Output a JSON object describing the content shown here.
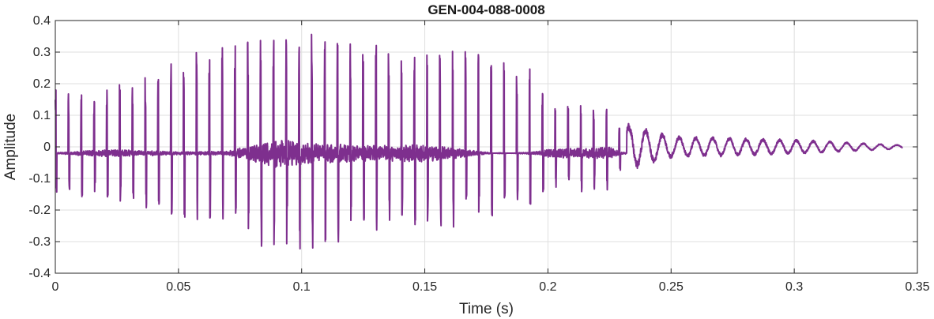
{
  "chart_data": {
    "type": "line",
    "title": "GEN-004-088-0008",
    "xlabel": "Time (s)",
    "ylabel": "Amplitude",
    "xlim": [
      0,
      0.35
    ],
    "ylim": [
      -0.4,
      0.4
    ],
    "xticks": [
      0,
      0.05,
      0.1,
      0.15,
      0.2,
      0.25,
      0.3,
      0.35
    ],
    "xtick_labels": [
      "0",
      "0.05",
      "0.1",
      "0.15",
      "0.2",
      "0.25",
      "0.3",
      "0.35"
    ],
    "yticks": [
      -0.4,
      -0.3,
      -0.2,
      -0.1,
      0,
      0.1,
      0.2,
      0.3,
      0.4
    ],
    "ytick_labels": [
      "-0.4",
      "-0.3",
      "-0.2",
      "-0.1",
      "0",
      "0.1",
      "0.2",
      "0.3",
      "0.4"
    ],
    "grid": true,
    "series": [
      {
        "color": "#7e2f8e",
        "duration": 0.344,
        "envelope": [
          [
            0.0,
            0.2,
            -0.13
          ],
          [
            0.02,
            0.2,
            -0.15
          ],
          [
            0.05,
            0.3,
            -0.2
          ],
          [
            0.07,
            0.36,
            -0.24
          ],
          [
            0.09,
            0.36,
            -0.32
          ],
          [
            0.105,
            0.38,
            -0.3
          ],
          [
            0.13,
            0.35,
            -0.27
          ],
          [
            0.15,
            0.34,
            -0.27
          ],
          [
            0.18,
            0.32,
            -0.2
          ],
          [
            0.195,
            0.27,
            -0.18
          ],
          [
            0.2,
            0.15,
            -0.12
          ],
          [
            0.225,
            0.15,
            -0.13
          ],
          [
            0.23,
            0.07,
            -0.05
          ],
          [
            0.25,
            0.03,
            -0.02
          ],
          [
            0.3,
            0.02,
            -0.02
          ],
          [
            0.344,
            0.005,
            -0.005
          ]
        ]
      }
    ]
  }
}
